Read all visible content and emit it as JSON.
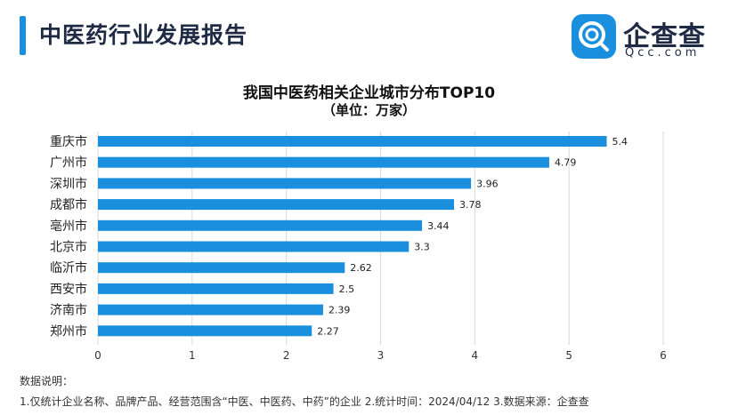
{
  "header": {
    "title": "中医药行业发展报告",
    "brand_name": "企查查",
    "brand_domain": "Qcc.com",
    "brand_color": "#1a8fdd"
  },
  "chart_data": {
    "type": "bar",
    "orientation": "horizontal",
    "title": "我国中医药相关企业城市分布TOP10",
    "subtitle": "（单位：万家）",
    "categories": [
      "重庆市",
      "广州市",
      "深圳市",
      "成都市",
      "亳州市",
      "北京市",
      "临沂市",
      "西安市",
      "济南市",
      "郑州市"
    ],
    "values": [
      5.4,
      4.79,
      3.96,
      3.78,
      3.44,
      3.3,
      2.62,
      2.5,
      2.39,
      2.27
    ],
    "value_labels": [
      "5.4",
      "4.79",
      "3.96",
      "3.78",
      "3.44",
      "3.3",
      "2.62",
      "2.5",
      "2.39",
      "2.27"
    ],
    "xlim": [
      0,
      6
    ],
    "x_ticks": [
      0,
      1,
      2,
      3,
      4,
      5,
      6
    ],
    "grid": true,
    "bar_color": "#1a8fdd"
  },
  "notes": {
    "heading": "数据说明：",
    "text": "1.仅统计企业名称、品牌产品、经营范围含“中医、中医药、中药”的企业   2.统计时间：2024/04/12   3.数据来源：企查查"
  }
}
